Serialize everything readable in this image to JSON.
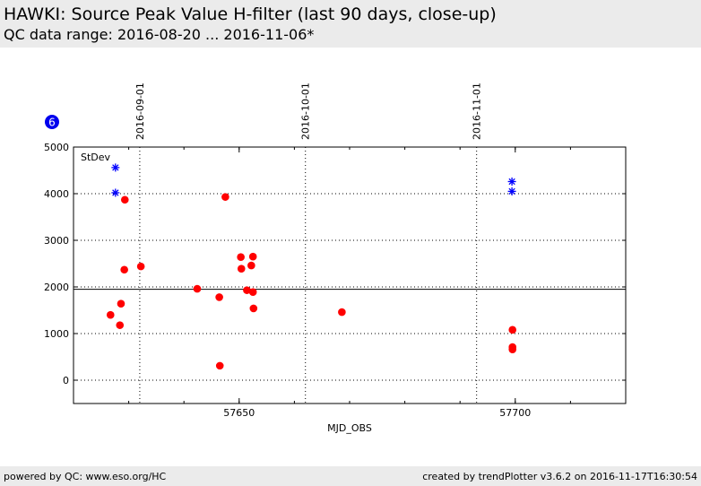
{
  "header": {
    "title": "HAWKI: Source Peak Value H-filter (last 90 days, close-up)",
    "subtitle": "QC data range: 2016-08-20 ... 2016-11-06*"
  },
  "footer": {
    "left": "powered by QC: www.eso.org/HC",
    "right": "created by trendPlotter v3.6.2 on 2016-11-17T16:30:54"
  },
  "badge": {
    "text": "6",
    "color": "#0000ee"
  },
  "chart_data": {
    "type": "scatter",
    "xlabel": "MJD_OBS",
    "ylabel": "",
    "xlim": [
      57620,
      57720
    ],
    "ylim": [
      -500,
      5000
    ],
    "x_ticks": [
      57650,
      57700
    ],
    "y_ticks": [
      0,
      1000,
      2000,
      3000,
      4000,
      5000
    ],
    "date_markers": [
      {
        "label": "2016-09-01",
        "mjd": 57632
      },
      {
        "label": "2016-10-01",
        "mjd": 57662
      },
      {
        "label": "2016-11-01",
        "mjd": 57693
      }
    ],
    "stdev_label": "StDev",
    "reference_line": 1950,
    "grid": true,
    "colors": {
      "values": "#ff0000",
      "stdev": "#0000ff",
      "reference": "#000000"
    },
    "series": [
      {
        "marker": "circle",
        "points": [
          [
            57626.7,
            1400
          ],
          [
            57628.4,
            1180
          ],
          [
            57628.6,
            1640
          ],
          [
            57629.2,
            2370
          ],
          [
            57629.3,
            3870
          ],
          [
            57632.2,
            2440
          ],
          [
            57642.4,
            1960
          ],
          [
            57646.4,
            1780
          ],
          [
            57646.5,
            310
          ],
          [
            57647.5,
            3930
          ],
          [
            57650.3,
            2640
          ],
          [
            57650.4,
            2390
          ],
          [
            57651.4,
            1930
          ],
          [
            57652.2,
            2460
          ],
          [
            57652.5,
            2650
          ],
          [
            57652.5,
            1890
          ],
          [
            57652.6,
            1540
          ],
          [
            57668.6,
            1460
          ],
          [
            57699.5,
            1080
          ],
          [
            57699.5,
            710
          ],
          [
            57699.5,
            660
          ]
        ]
      },
      {
        "marker": "star",
        "points": [
          [
            57627.6,
            4560
          ],
          [
            57627.6,
            4020
          ],
          [
            57699.4,
            4260
          ],
          [
            57699.4,
            4050
          ]
        ]
      }
    ]
  }
}
